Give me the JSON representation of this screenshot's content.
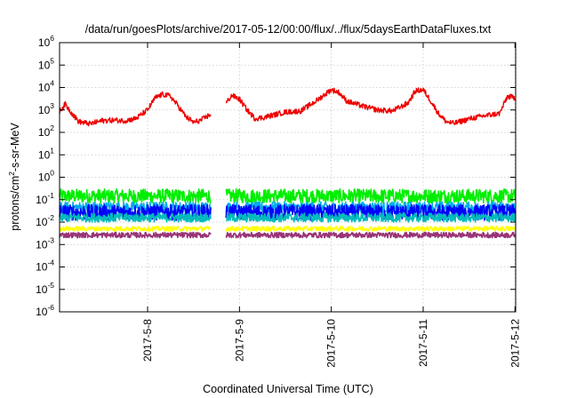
{
  "chart_data": {
    "type": "line",
    "title": "/data/run/goesPlots/archive/2017-05-12/00:00/flux/../flux/5daysEarthDataFluxes.txt",
    "xlabel": "Coordinated Universal Time (UTC)",
    "ylabel_parts": {
      "pre": "protons/cm",
      "sup": "2",
      "post": "-s-sr-MeV"
    },
    "yscale": "log",
    "ylim": [
      1e-06,
      1000000.0
    ],
    "y_ticks": [
      {
        "base": "10",
        "exp": "-6"
      },
      {
        "base": "10",
        "exp": "-5"
      },
      {
        "base": "10",
        "exp": "-4"
      },
      {
        "base": "10",
        "exp": "-3"
      },
      {
        "base": "10",
        "exp": "-2"
      },
      {
        "base": "10",
        "exp": "-1"
      },
      {
        "base": "10",
        "exp": "0"
      },
      {
        "base": "10",
        "exp": "1"
      },
      {
        "base": "10",
        "exp": "2"
      },
      {
        "base": "10",
        "exp": "3"
      },
      {
        "base": "10",
        "exp": "4"
      },
      {
        "base": "10",
        "exp": "5"
      },
      {
        "base": "10",
        "exp": "6"
      }
    ],
    "xlim": [
      "2017-05-07 01:00",
      "2017-05-12 00:10"
    ],
    "x_ticks": [
      "2017-5-8",
      "2017-5-9",
      "2017-5-10",
      "2017-5-11",
      "2017-5-12"
    ],
    "grid": true,
    "data_gap": [
      "2017-05-08 16:30",
      "2017-05-08 20:30"
    ],
    "series": [
      {
        "color": "#ee0000",
        "points": [
          [
            "2017-05-07 01:00",
            900
          ],
          [
            "2017-05-07 02:30",
            1800
          ],
          [
            "2017-05-07 04:00",
            800
          ],
          [
            "2017-05-07 06:00",
            300
          ],
          [
            "2017-05-07 09:00",
            240
          ],
          [
            "2017-05-07 12:00",
            330
          ],
          [
            "2017-05-07 15:00",
            350
          ],
          [
            "2017-05-07 18:00",
            330
          ],
          [
            "2017-05-07 21:00",
            420
          ],
          [
            "2017-05-08 00:00",
            1000
          ],
          [
            "2017-05-08 02:00",
            3500
          ],
          [
            "2017-05-08 04:00",
            5000
          ],
          [
            "2017-05-08 06:00",
            4000
          ],
          [
            "2017-05-08 08:00",
            1500
          ],
          [
            "2017-05-08 10:00",
            500
          ],
          [
            "2017-05-08 12:00",
            280
          ],
          [
            "2017-05-08 14:00",
            350
          ],
          [
            "2017-05-08 16:30",
            650
          ]
        ]
      },
      {
        "color": "#ee0000",
        "points": [
          [
            "2017-05-08 20:30",
            2000
          ],
          [
            "2017-05-08 22:00",
            4500
          ],
          [
            "2017-05-09 00:00",
            3000
          ],
          [
            "2017-05-09 02:00",
            1000
          ],
          [
            "2017-05-09 04:00",
            420
          ],
          [
            "2017-05-09 06:00",
            450
          ],
          [
            "2017-05-09 09:00",
            600
          ],
          [
            "2017-05-09 12:00",
            800
          ],
          [
            "2017-05-09 16:00",
            900
          ],
          [
            "2017-05-09 20:00",
            2500
          ],
          [
            "2017-05-10 00:00",
            8000
          ],
          [
            "2017-05-10 02:00",
            6000
          ],
          [
            "2017-05-10 04:00",
            2500
          ],
          [
            "2017-05-10 08:00",
            1500
          ],
          [
            "2017-05-10 12:00",
            1000
          ],
          [
            "2017-05-10 16:00",
            900
          ],
          [
            "2017-05-10 20:00",
            2000
          ],
          [
            "2017-05-10 22:00",
            7000
          ],
          [
            "2017-05-11 00:00",
            8000
          ],
          [
            "2017-05-11 02:00",
            2500
          ],
          [
            "2017-05-11 04:00",
            700
          ],
          [
            "2017-05-11 06:00",
            300
          ],
          [
            "2017-05-11 08:00",
            250
          ],
          [
            "2017-05-11 12:00",
            400
          ],
          [
            "2017-05-11 16:00",
            550
          ],
          [
            "2017-05-11 20:00",
            700
          ],
          [
            "2017-05-11 22:00",
            4000
          ],
          [
            "2017-05-12 00:10",
            3500
          ]
        ]
      },
      {
        "color": "#00ee00",
        "band": [
          0.07,
          0.3
        ],
        "points": [
          [
            "2017-05-07 01:00",
            0.15
          ],
          [
            "2017-05-12 00:10",
            0.15
          ]
        ]
      },
      {
        "color": "#00aaee",
        "band": [
          0.025,
          0.08
        ],
        "points": [
          [
            "2017-05-07 01:00",
            0.05
          ],
          [
            "2017-05-12 00:10",
            0.05
          ]
        ]
      },
      {
        "color": "#0000ff",
        "band": [
          0.012,
          0.06
        ],
        "points": [
          [
            "2017-05-07 01:00",
            0.03
          ],
          [
            "2017-05-12 00:10",
            0.03
          ]
        ]
      },
      {
        "color": "#00bbbb",
        "band": [
          0.01,
          0.025
        ],
        "points": [
          [
            "2017-05-07 01:00",
            0.017
          ],
          [
            "2017-05-12 00:10",
            0.017
          ]
        ]
      },
      {
        "color": "#ffff00",
        "band": [
          0.004,
          0.0065
        ],
        "points": [
          [
            "2017-05-07 01:00",
            0.005
          ],
          [
            "2017-05-12 00:10",
            0.005
          ]
        ]
      },
      {
        "color": "#993377",
        "band": [
          0.002,
          0.0035
        ],
        "points": [
          [
            "2017-05-07 01:00",
            0.0027
          ],
          [
            "2017-05-12 00:10",
            0.0027
          ]
        ]
      }
    ]
  }
}
